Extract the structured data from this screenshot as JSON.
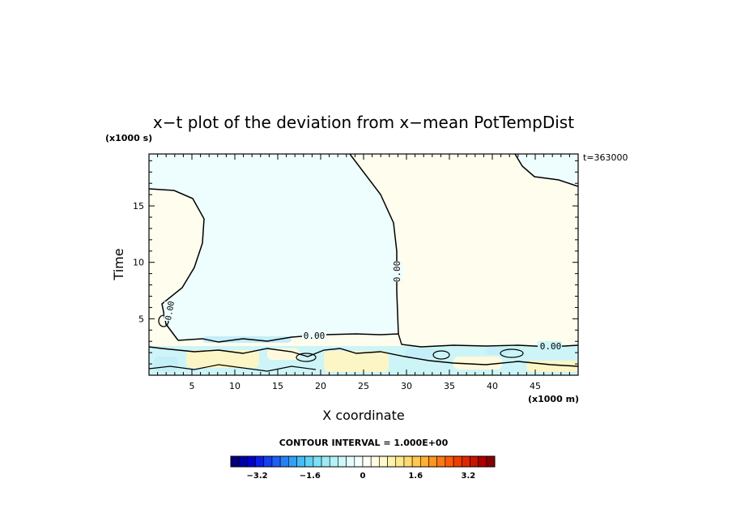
{
  "chart_data": {
    "type": "heatmap",
    "title": "x−t plot of the deviation from x−mean PotTempDist",
    "ylabel": "Time",
    "xlabel": "X coordinate",
    "y_unit_label": "(x1000 s)",
    "x_unit_label": "(x1000 m)",
    "time_annotation": "t=363000",
    "x_ticks": [
      "5",
      "10",
      "15",
      "20",
      "25",
      "30",
      "35",
      "40",
      "45"
    ],
    "y_ticks": [
      "5",
      "10",
      "15"
    ],
    "xlim": [
      0,
      50
    ],
    "ylim": [
      0,
      19.6
    ],
    "contour_labels": [
      "0.00",
      "0.00",
      "0.00",
      "0.00"
    ],
    "contour_interval_text": "CONTOUR INTERVAL = 1.000E+00",
    "colorbar": {
      "tick_labels": [
        "−3.2",
        "−1.6",
        "0",
        "1.6",
        "3.2"
      ],
      "tick_values": [
        -3.2,
        -1.6,
        0,
        1.6,
        3.2
      ],
      "range": [
        -4.0,
        4.0
      ],
      "colors": [
        "#00007a",
        "#0000a6",
        "#0000cc",
        "#0a1ee6",
        "#1440f0",
        "#1e60f5",
        "#2880f5",
        "#32a0f5",
        "#46bcf5",
        "#60d2f5",
        "#7ee0f5",
        "#9aeaf5",
        "#b6f2f5",
        "#cef8f8",
        "#e4fcfc",
        "#f4ffff",
        "#fffff4",
        "#fffce4",
        "#fff8c8",
        "#fff2aa",
        "#ffe88c",
        "#ffda6e",
        "#ffc850",
        "#ffb032",
        "#ff961e",
        "#ff7814",
        "#ff5a0a",
        "#f03c00",
        "#dc2800",
        "#c81400",
        "#aa0000",
        "#880000"
      ]
    },
    "regions": {
      "upper_left_color": "#eefefe",
      "upper_right_color": "#fefdee",
      "lower_band_colors": [
        "#cdf5f8",
        "#fcf5c6",
        "#c4eef8",
        "#fffadd"
      ]
    }
  }
}
